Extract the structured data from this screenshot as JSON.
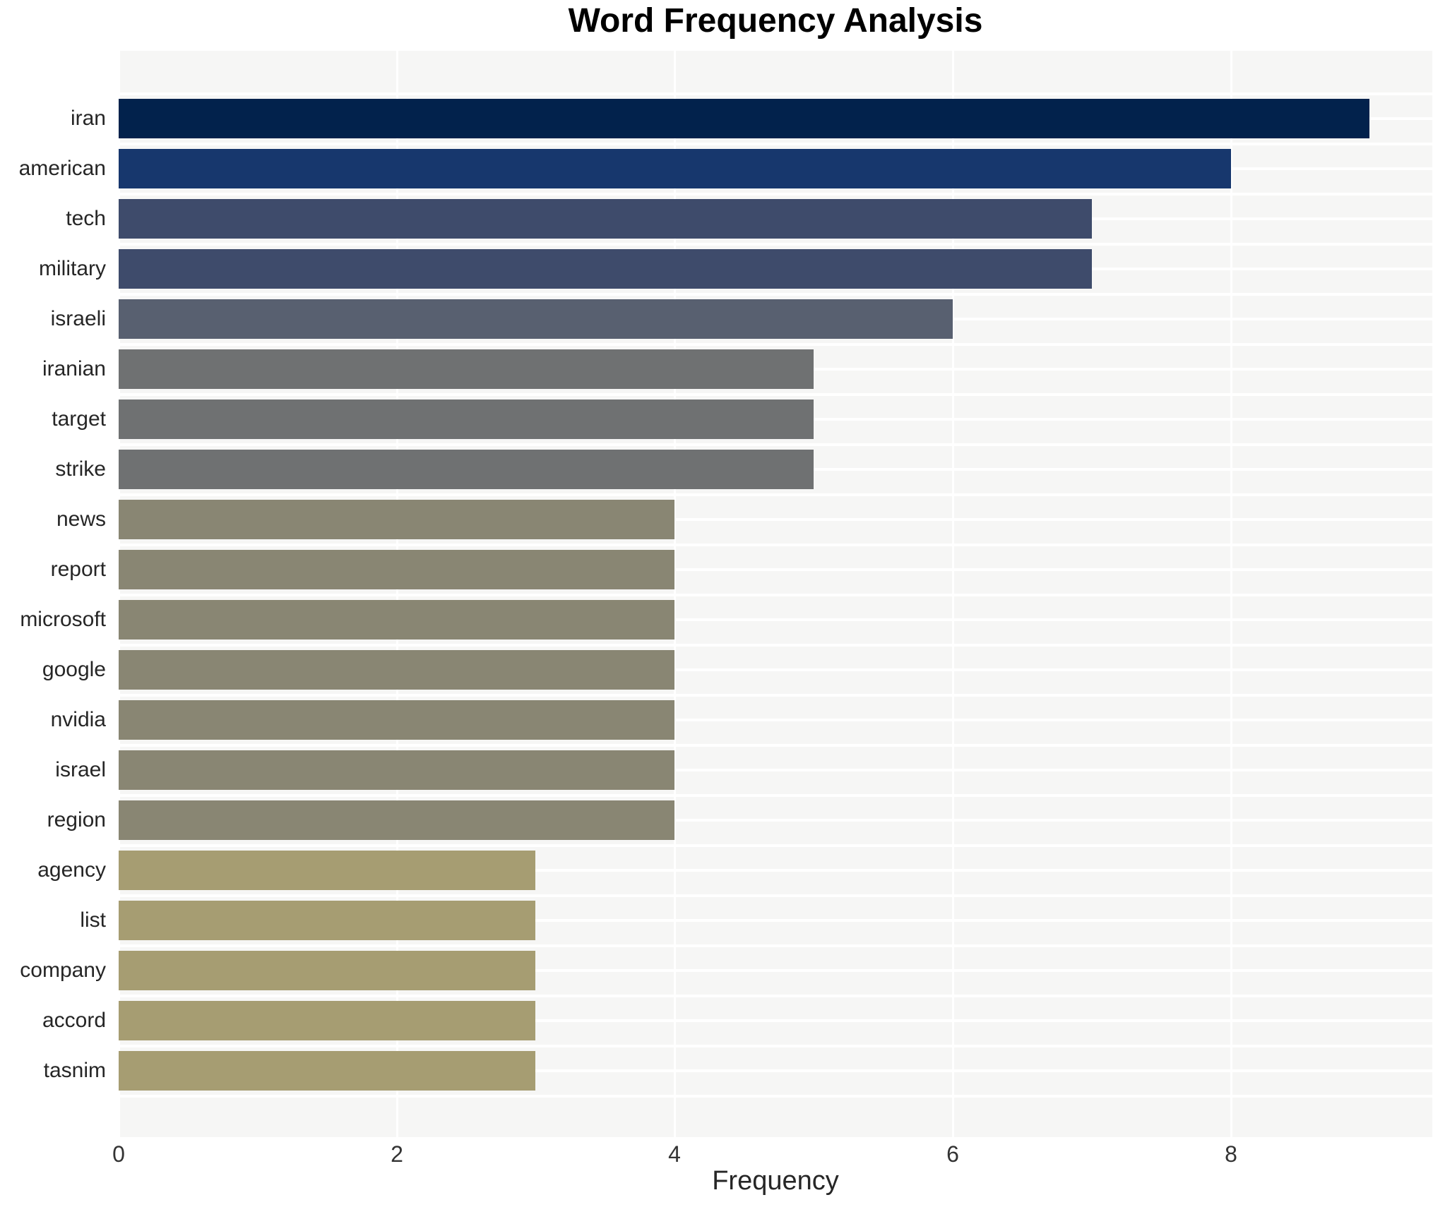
{
  "chart_data": {
    "type": "bar",
    "orientation": "horizontal",
    "title": "Word Frequency Analysis",
    "xlabel": "Frequency",
    "ylabel": "",
    "categories": [
      "iran",
      "american",
      "tech",
      "military",
      "israeli",
      "iranian",
      "target",
      "strike",
      "news",
      "report",
      "microsoft",
      "google",
      "nvidia",
      "israel",
      "region",
      "agency",
      "list",
      "company",
      "accord",
      "tasnim"
    ],
    "values": [
      9,
      8,
      7,
      7,
      6,
      5,
      5,
      5,
      4,
      4,
      4,
      4,
      4,
      4,
      4,
      3,
      3,
      3,
      3,
      3
    ],
    "bar_colors": [
      "#02224c",
      "#17376d",
      "#3e4b6b",
      "#3e4b6b",
      "#586070",
      "#6f7172",
      "#6f7172",
      "#6f7172",
      "#898673",
      "#898673",
      "#898673",
      "#898673",
      "#898673",
      "#898673",
      "#898673",
      "#a69d72",
      "#a69d72",
      "#a69d72",
      "#a69d72",
      "#a69d72"
    ],
    "xlim": [
      0,
      9.45
    ],
    "xticks": [
      0,
      2,
      4,
      6,
      8
    ],
    "grid": true,
    "legend": null,
    "plot_background": "#f6f6f5",
    "grid_color": "#ffffff",
    "text_color": "#262626",
    "title_color": "#000000"
  }
}
